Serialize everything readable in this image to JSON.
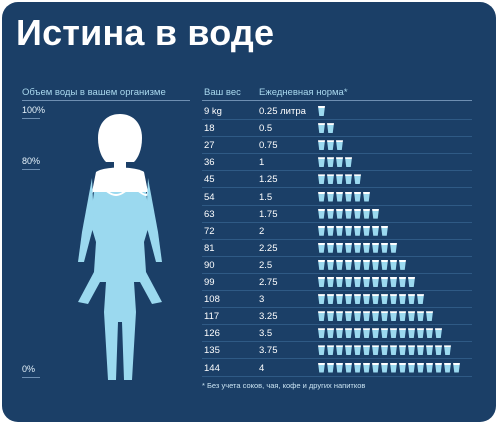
{
  "title": "Истина в воде",
  "left_panel": {
    "header": "Объем воды в вашем организме",
    "levels": [
      "100%",
      "80%",
      "0%"
    ]
  },
  "table": {
    "col_weight": "Ваш вес",
    "col_norm": "Ежедневная норма*",
    "rows": [
      {
        "weight": "9 kg",
        "liters": "0.25 литра",
        "glasses": 1
      },
      {
        "weight": "18",
        "liters": "0.5",
        "glasses": 2
      },
      {
        "weight": "27",
        "liters": "0.75",
        "glasses": 3
      },
      {
        "weight": "36",
        "liters": "1",
        "glasses": 4
      },
      {
        "weight": "45",
        "liters": "1.25",
        "glasses": 5
      },
      {
        "weight": "54",
        "liters": "1.5",
        "glasses": 6
      },
      {
        "weight": "63",
        "liters": "1.75",
        "glasses": 7
      },
      {
        "weight": "72",
        "liters": "2",
        "glasses": 8
      },
      {
        "weight": "81",
        "liters": "2.25",
        "glasses": 9
      },
      {
        "weight": "90",
        "liters": "2.5",
        "glasses": 10
      },
      {
        "weight": "99",
        "liters": "2.75",
        "glasses": 11
      },
      {
        "weight": "108",
        "liters": "3",
        "glasses": 12
      },
      {
        "weight": "117",
        "liters": "3.25",
        "glasses": 13
      },
      {
        "weight": "126",
        "liters": "3.5",
        "glasses": 14
      },
      {
        "weight": "135",
        "liters": "3.75",
        "glasses": 15
      },
      {
        "weight": "144",
        "liters": "4",
        "glasses": 16
      }
    ],
    "footnote": "* Без учета соков, чая, кофе и других напитков"
  },
  "colors": {
    "background": "#1b3f67",
    "water": "#9bd9ef",
    "header_text": "#a9d8ee"
  }
}
